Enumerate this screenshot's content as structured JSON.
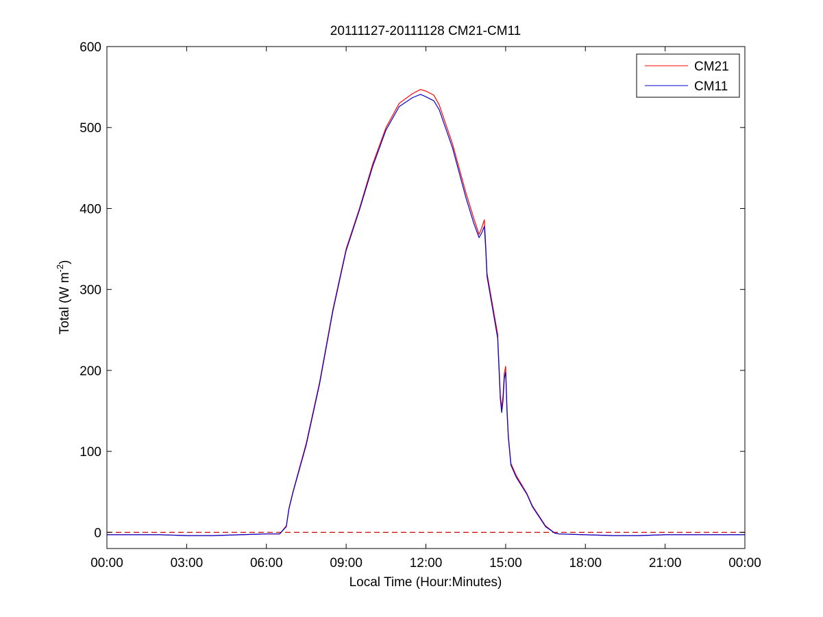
{
  "chart_data": {
    "type": "line",
    "title": "20111127-20111128 CM21-CM11",
    "xlabel": "Local Time (Hour:Minutes)",
    "ylabel": "Total (W m",
    "ylabel_superscript": "-2",
    "ylabel_close": ")",
    "xlim": [
      0,
      24
    ],
    "ylim": [
      -20,
      600
    ],
    "x_unit": "hours",
    "x_ticks": [
      0,
      3,
      6,
      9,
      12,
      15,
      18,
      21,
      24
    ],
    "x_tick_labels": [
      "00:00",
      "03:00",
      "06:00",
      "09:00",
      "12:00",
      "15:00",
      "18:00",
      "21:00",
      "00:00"
    ],
    "y_ticks": [
      0,
      100,
      200,
      300,
      400,
      500,
      600
    ],
    "y_tick_labels": [
      "0",
      "100",
      "200",
      "300",
      "400",
      "500",
      "600"
    ],
    "grid": false,
    "legend_position": "top-right",
    "reference_line": {
      "y": 0,
      "style": "dashed",
      "color": "#cc0000"
    },
    "series": [
      {
        "name": "CM21",
        "color": "#ff0000",
        "x": [
          0,
          1,
          2,
          3,
          4,
          5,
          6,
          6.5,
          6.75,
          6.85,
          7.0,
          7.5,
          8.0,
          8.5,
          9.0,
          9.5,
          10.0,
          10.5,
          11.0,
          11.5,
          11.8,
          12.0,
          12.3,
          12.5,
          13.0,
          13.5,
          13.8,
          14.0,
          14.1,
          14.2,
          14.25,
          14.3,
          14.5,
          14.7,
          14.8,
          14.85,
          14.9,
          14.95,
          15.0,
          15.05,
          15.1,
          15.2,
          15.4,
          15.8,
          16.0,
          16.5,
          16.85,
          17.0,
          18.0,
          19.0,
          20.0,
          21.0,
          22.0,
          23.0,
          24.0
        ],
        "y": [
          -3,
          -3,
          -3,
          -4,
          -4,
          -3,
          -2,
          -2,
          8,
          30,
          50,
          110,
          185,
          275,
          350,
          400,
          455,
          500,
          530,
          542,
          547,
          545,
          540,
          528,
          480,
          420,
          388,
          368,
          376,
          386,
          355,
          320,
          282,
          245,
          170,
          153,
          168,
          196,
          205,
          155,
          120,
          85,
          70,
          48,
          33,
          8,
          -1,
          -2,
          -3,
          -4,
          -4,
          -3,
          -3,
          -3,
          -3
        ]
      },
      {
        "name": "CM11",
        "color": "#0000cc",
        "x": [
          0,
          1,
          2,
          3,
          4,
          5,
          6,
          6.5,
          6.75,
          6.85,
          7.0,
          7.5,
          8.0,
          8.5,
          9.0,
          9.5,
          10.0,
          10.5,
          11.0,
          11.5,
          11.8,
          12.0,
          12.3,
          12.5,
          13.0,
          13.5,
          13.8,
          14.0,
          14.1,
          14.2,
          14.25,
          14.3,
          14.5,
          14.7,
          14.8,
          14.85,
          14.9,
          14.95,
          15.0,
          15.05,
          15.1,
          15.2,
          15.4,
          15.8,
          16.0,
          16.5,
          16.85,
          17.0,
          18.0,
          19.0,
          20.0,
          21.0,
          22.0,
          23.0,
          24.0
        ],
        "y": [
          -3,
          -3,
          -3,
          -4,
          -4,
          -3,
          -2,
          -2,
          7,
          29,
          49,
          108,
          183,
          273,
          348,
          398,
          452,
          497,
          526,
          537,
          541,
          538,
          533,
          522,
          475,
          414,
          382,
          364,
          370,
          378,
          350,
          316,
          278,
          240,
          165,
          148,
          162,
          190,
          198,
          150,
          117,
          83,
          68,
          47,
          32,
          7,
          -1,
          -2,
          -3,
          -4,
          -4,
          -3,
          -3,
          -3,
          -3
        ]
      }
    ]
  }
}
